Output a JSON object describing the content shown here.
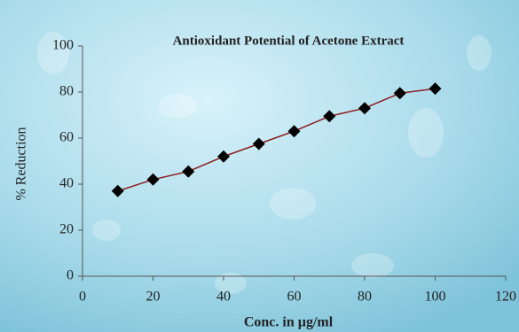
{
  "chart_data": {
    "type": "line",
    "title": "Antioxidant Potential of Acetone Extract",
    "x_label": "Conc. in µg/ml",
    "y_label": "% Reduction",
    "x": [
      10,
      20,
      30,
      40,
      50,
      60,
      70,
      80,
      90,
      100
    ],
    "series": [
      {
        "name": "% Reduction",
        "color": "#8b1a1a",
        "marker_color": "#000000",
        "values": [
          37,
          42,
          45.5,
          52,
          57.5,
          63,
          69.5,
          73,
          79.5,
          81.5
        ]
      }
    ],
    "xlim": [
      0,
      120
    ],
    "xticks": [
      0,
      20,
      40,
      60,
      80,
      100,
      120
    ],
    "ylim": [
      0,
      100
    ],
    "yticks": [
      0,
      20,
      40,
      60,
      80,
      100
    ]
  }
}
